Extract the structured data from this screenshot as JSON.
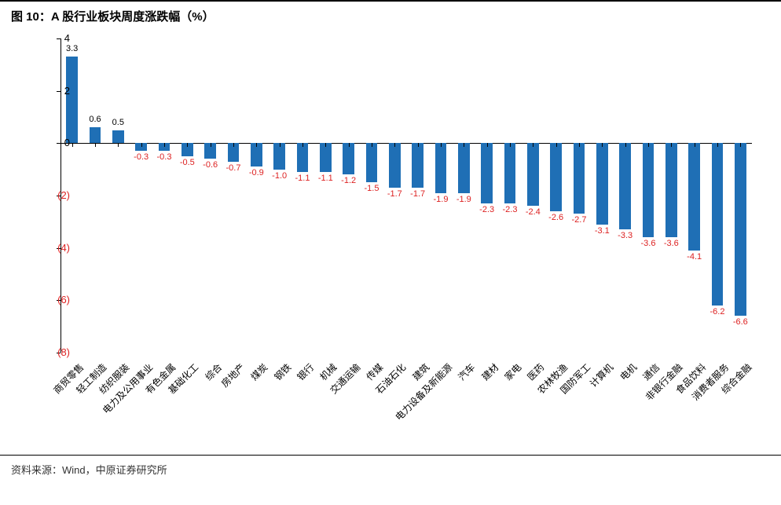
{
  "title": "图 10：A 股行业板块周度涨跌幅（%）",
  "footer": "资料来源：Wind，中原证券研究所",
  "chart": {
    "type": "bar",
    "ylim": [
      -8,
      4
    ],
    "ytick_step": 2,
    "yticks": [
      4,
      2,
      0,
      -2,
      -4,
      -6,
      -8
    ],
    "ytick_labels": [
      "4",
      "2",
      "0",
      "(2)",
      "(4)",
      "(6)",
      "(8)"
    ],
    "bar_color": "#1f6fb5",
    "positive_label_color": "#000000",
    "negative_label_color": "#d22",
    "axis_color": "#000000",
    "background_color": "#ffffff",
    "bar_width_ratio": 0.5,
    "label_fontsize": 11,
    "categories": [
      "商贸零售",
      "轻工制造",
      "纺织服装",
      "电力及公用事业",
      "有色金属",
      "基础化工",
      "综合",
      "房地产",
      "煤炭",
      "钢铁",
      "银行",
      "机械",
      "交通运输",
      "传媒",
      "石油石化",
      "建筑",
      "电力设备及新能源",
      "汽车",
      "建材",
      "家电",
      "医药",
      "农林牧渔",
      "国防军工",
      "计算机",
      "电机",
      "通信",
      "非银行金融",
      "食品饮料",
      "消费者服务",
      "综合金融"
    ],
    "values": [
      3.3,
      0.6,
      0.5,
      -0.3,
      -0.3,
      -0.5,
      -0.6,
      -0.7,
      -0.9,
      -1.0,
      -1.1,
      -1.1,
      -1.2,
      -1.5,
      -1.7,
      -1.7,
      -1.9,
      -1.9,
      -2.3,
      -2.3,
      -2.4,
      -2.6,
      -2.7,
      -3.1,
      -3.3,
      -3.6,
      -3.6,
      -4.1,
      -6.2,
      -6.6
    ]
  }
}
